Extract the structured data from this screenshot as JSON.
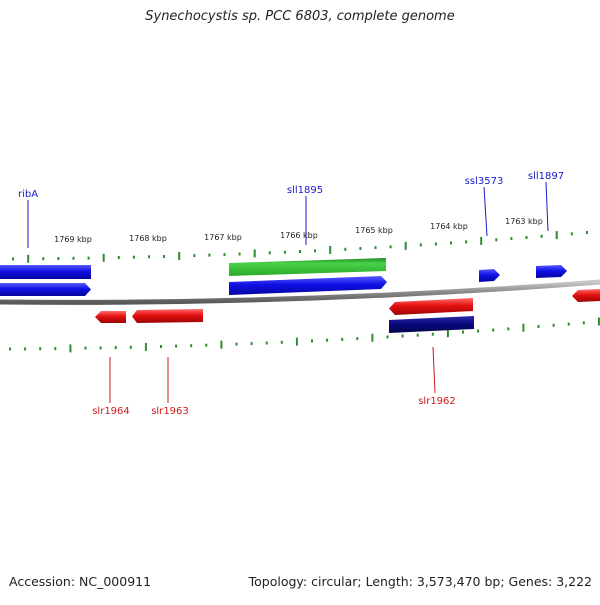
{
  "title": "Synechocystis sp. PCC 6803, complete genome",
  "footer": {
    "accession": "Accession: NC_000911",
    "topology": "Topology: circular; Length: 3,573,470 bp; Genes: 3,222"
  },
  "colors": {
    "forward_gene": "#1010e6",
    "reverse_gene": "#e61010",
    "highlight_gene": "#2ec42e",
    "dark_gene": "#0a0a80",
    "backbone": "#808080",
    "tick": "#2e8b2e",
    "forward_label": "#1a1acc",
    "reverse_label": "#cc1a1a"
  },
  "scale_labels": [
    "1769 kbp",
    "1768 kbp",
    "1767 kbp",
    "1766 kbp",
    "1765 kbp",
    "1764 kbp",
    "1763 kbp"
  ],
  "gene_labels": {
    "forward": [
      "ribA",
      "sll1895",
      "ssl3573",
      "sll1897"
    ],
    "reverse": [
      "slr1964",
      "slr1963",
      "slr1962"
    ]
  }
}
